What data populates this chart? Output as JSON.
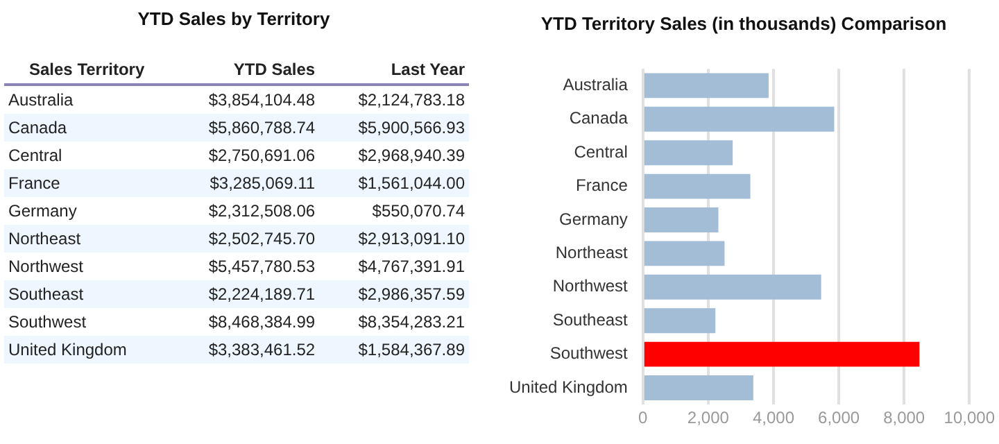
{
  "chart_data": [
    {
      "type": "other",
      "title": "YTD Sales by Territory",
      "ylabel": "Sales Territory",
      "categories": [
        "Australia",
        "Canada",
        "Central",
        "France",
        "Germany",
        "Northeast",
        "Northwest",
        "Southeast",
        "Southwest",
        "United Kingdom"
      ],
      "series": [
        {
          "name": "YTD Sales",
          "values": [
            3854104.48,
            5860788.74,
            2750691.06,
            3285069.11,
            2312508.06,
            2502745.7,
            5457780.53,
            2224189.71,
            8468384.99,
            3383461.52
          ],
          "value_labels": [
            "$3,854,104.48",
            "$5,860,788.74",
            "$2,750,691.06",
            "$3,285,069.11",
            "$2,312,508.06",
            "$2,502,745.70",
            "$5,457,780.53",
            "$2,224,189.71",
            "$8,468,384.99",
            "$3,383,461.52"
          ]
        },
        {
          "name": "Last Year",
          "values": [
            2124783.18,
            5900566.93,
            2968940.39,
            1561044.0,
            550070.74,
            2913091.1,
            4767391.91,
            2986357.59,
            8354283.21,
            1584367.89
          ],
          "value_labels": [
            "$2,124,783.18",
            "$5,900,566.93",
            "$2,968,940.39",
            "$1,561,044.00",
            "$550,070.74",
            "$2,913,091.10",
            "$4,767,391.91",
            "$2,986,357.59",
            "$8,354,283.21",
            "$1,584,367.89"
          ]
        }
      ]
    },
    {
      "type": "bar",
      "orientation": "horizontal",
      "title": "YTD Territory Sales (in thousands) Comparison",
      "categories": [
        "Australia",
        "Canada",
        "Central",
        "France",
        "Germany",
        "Northeast",
        "Northwest",
        "Southeast",
        "Southwest",
        "United Kingdom"
      ],
      "values": [
        3850,
        5860,
        2750,
        3290,
        2310,
        2500,
        5460,
        2220,
        8470,
        3380
      ],
      "colors": [
        "#a3bdd6",
        "#a3bdd6",
        "#a3bdd6",
        "#a3bdd6",
        "#a3bdd6",
        "#a3bdd6",
        "#a3bdd6",
        "#a3bdd6",
        "#ff0000",
        "#a3bdd6"
      ],
      "xlim": [
        0,
        10000
      ],
      "xticks": [
        {
          "value": 0,
          "label": "0"
        },
        {
          "value": 2000,
          "label": "2,000"
        },
        {
          "value": 4000,
          "label": "4,000"
        },
        {
          "value": 6000,
          "label": "6,000"
        },
        {
          "value": 8000,
          "label": "8,000"
        },
        {
          "value": 10000,
          "label": "10,000"
        }
      ],
      "grid": "x",
      "legend": false
    }
  ]
}
